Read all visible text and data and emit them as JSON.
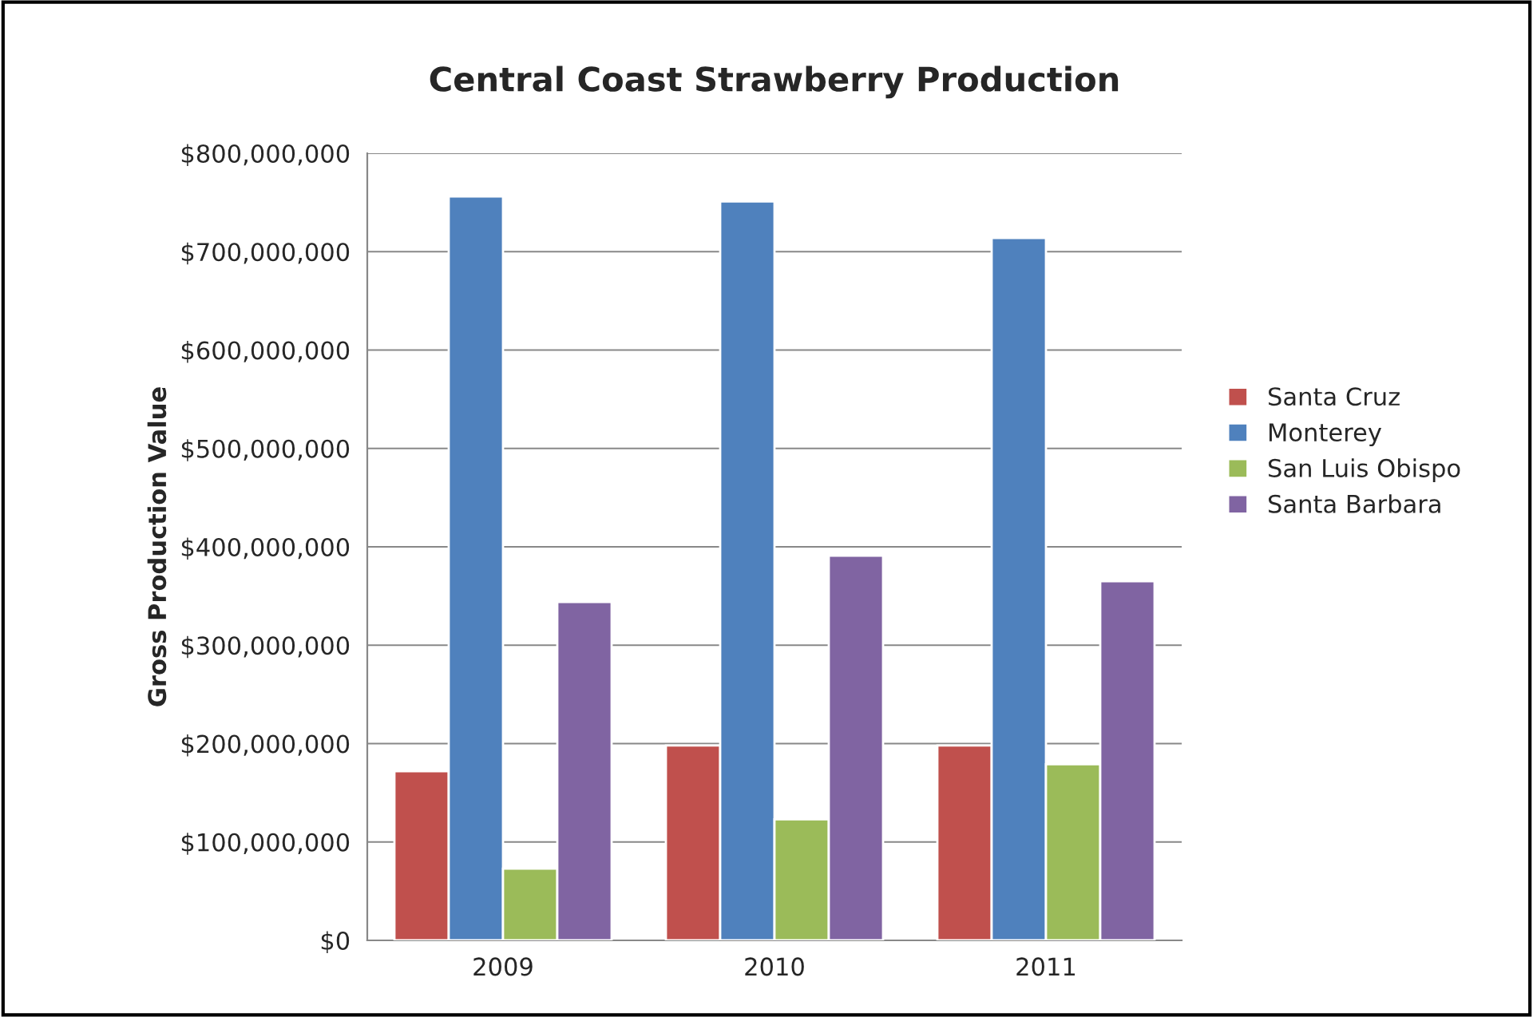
{
  "chart_data": {
    "type": "bar",
    "title": "Central Coast Strawberry Production",
    "ylabel": "Gross Production Value",
    "categories": [
      "2009",
      "2010",
      "2011"
    ],
    "series": [
      {
        "name": "Santa Cruz",
        "color": "#c0504d",
        "values": [
          172000000,
          198000000,
          198000000
        ]
      },
      {
        "name": "Monterey",
        "color": "#4f81bd",
        "values": [
          756000000,
          751000000,
          714000000
        ]
      },
      {
        "name": "San Luis Obispo",
        "color": "#9bbb59",
        "values": [
          73000000,
          123000000,
          179000000
        ]
      },
      {
        "name": "Santa Barbara",
        "color": "#8064a2",
        "values": [
          344000000,
          391000000,
          365000000
        ]
      }
    ],
    "ylim": [
      0,
      800000000
    ],
    "yticks": [
      {
        "value": 0,
        "label": "$0"
      },
      {
        "value": 100000000,
        "label": "$100,000,000"
      },
      {
        "value": 200000000,
        "label": "$200,000,000"
      },
      {
        "value": 300000000,
        "label": "$300,000,000"
      },
      {
        "value": 400000000,
        "label": "$400,000,000"
      },
      {
        "value": 500000000,
        "label": "$500,000,000"
      },
      {
        "value": 600000000,
        "label": "$600,000,000"
      },
      {
        "value": 700000000,
        "label": "$700,000,000"
      },
      {
        "value": 800000000,
        "label": "$800,000,000"
      }
    ],
    "grid": "y",
    "legend": "right"
  }
}
